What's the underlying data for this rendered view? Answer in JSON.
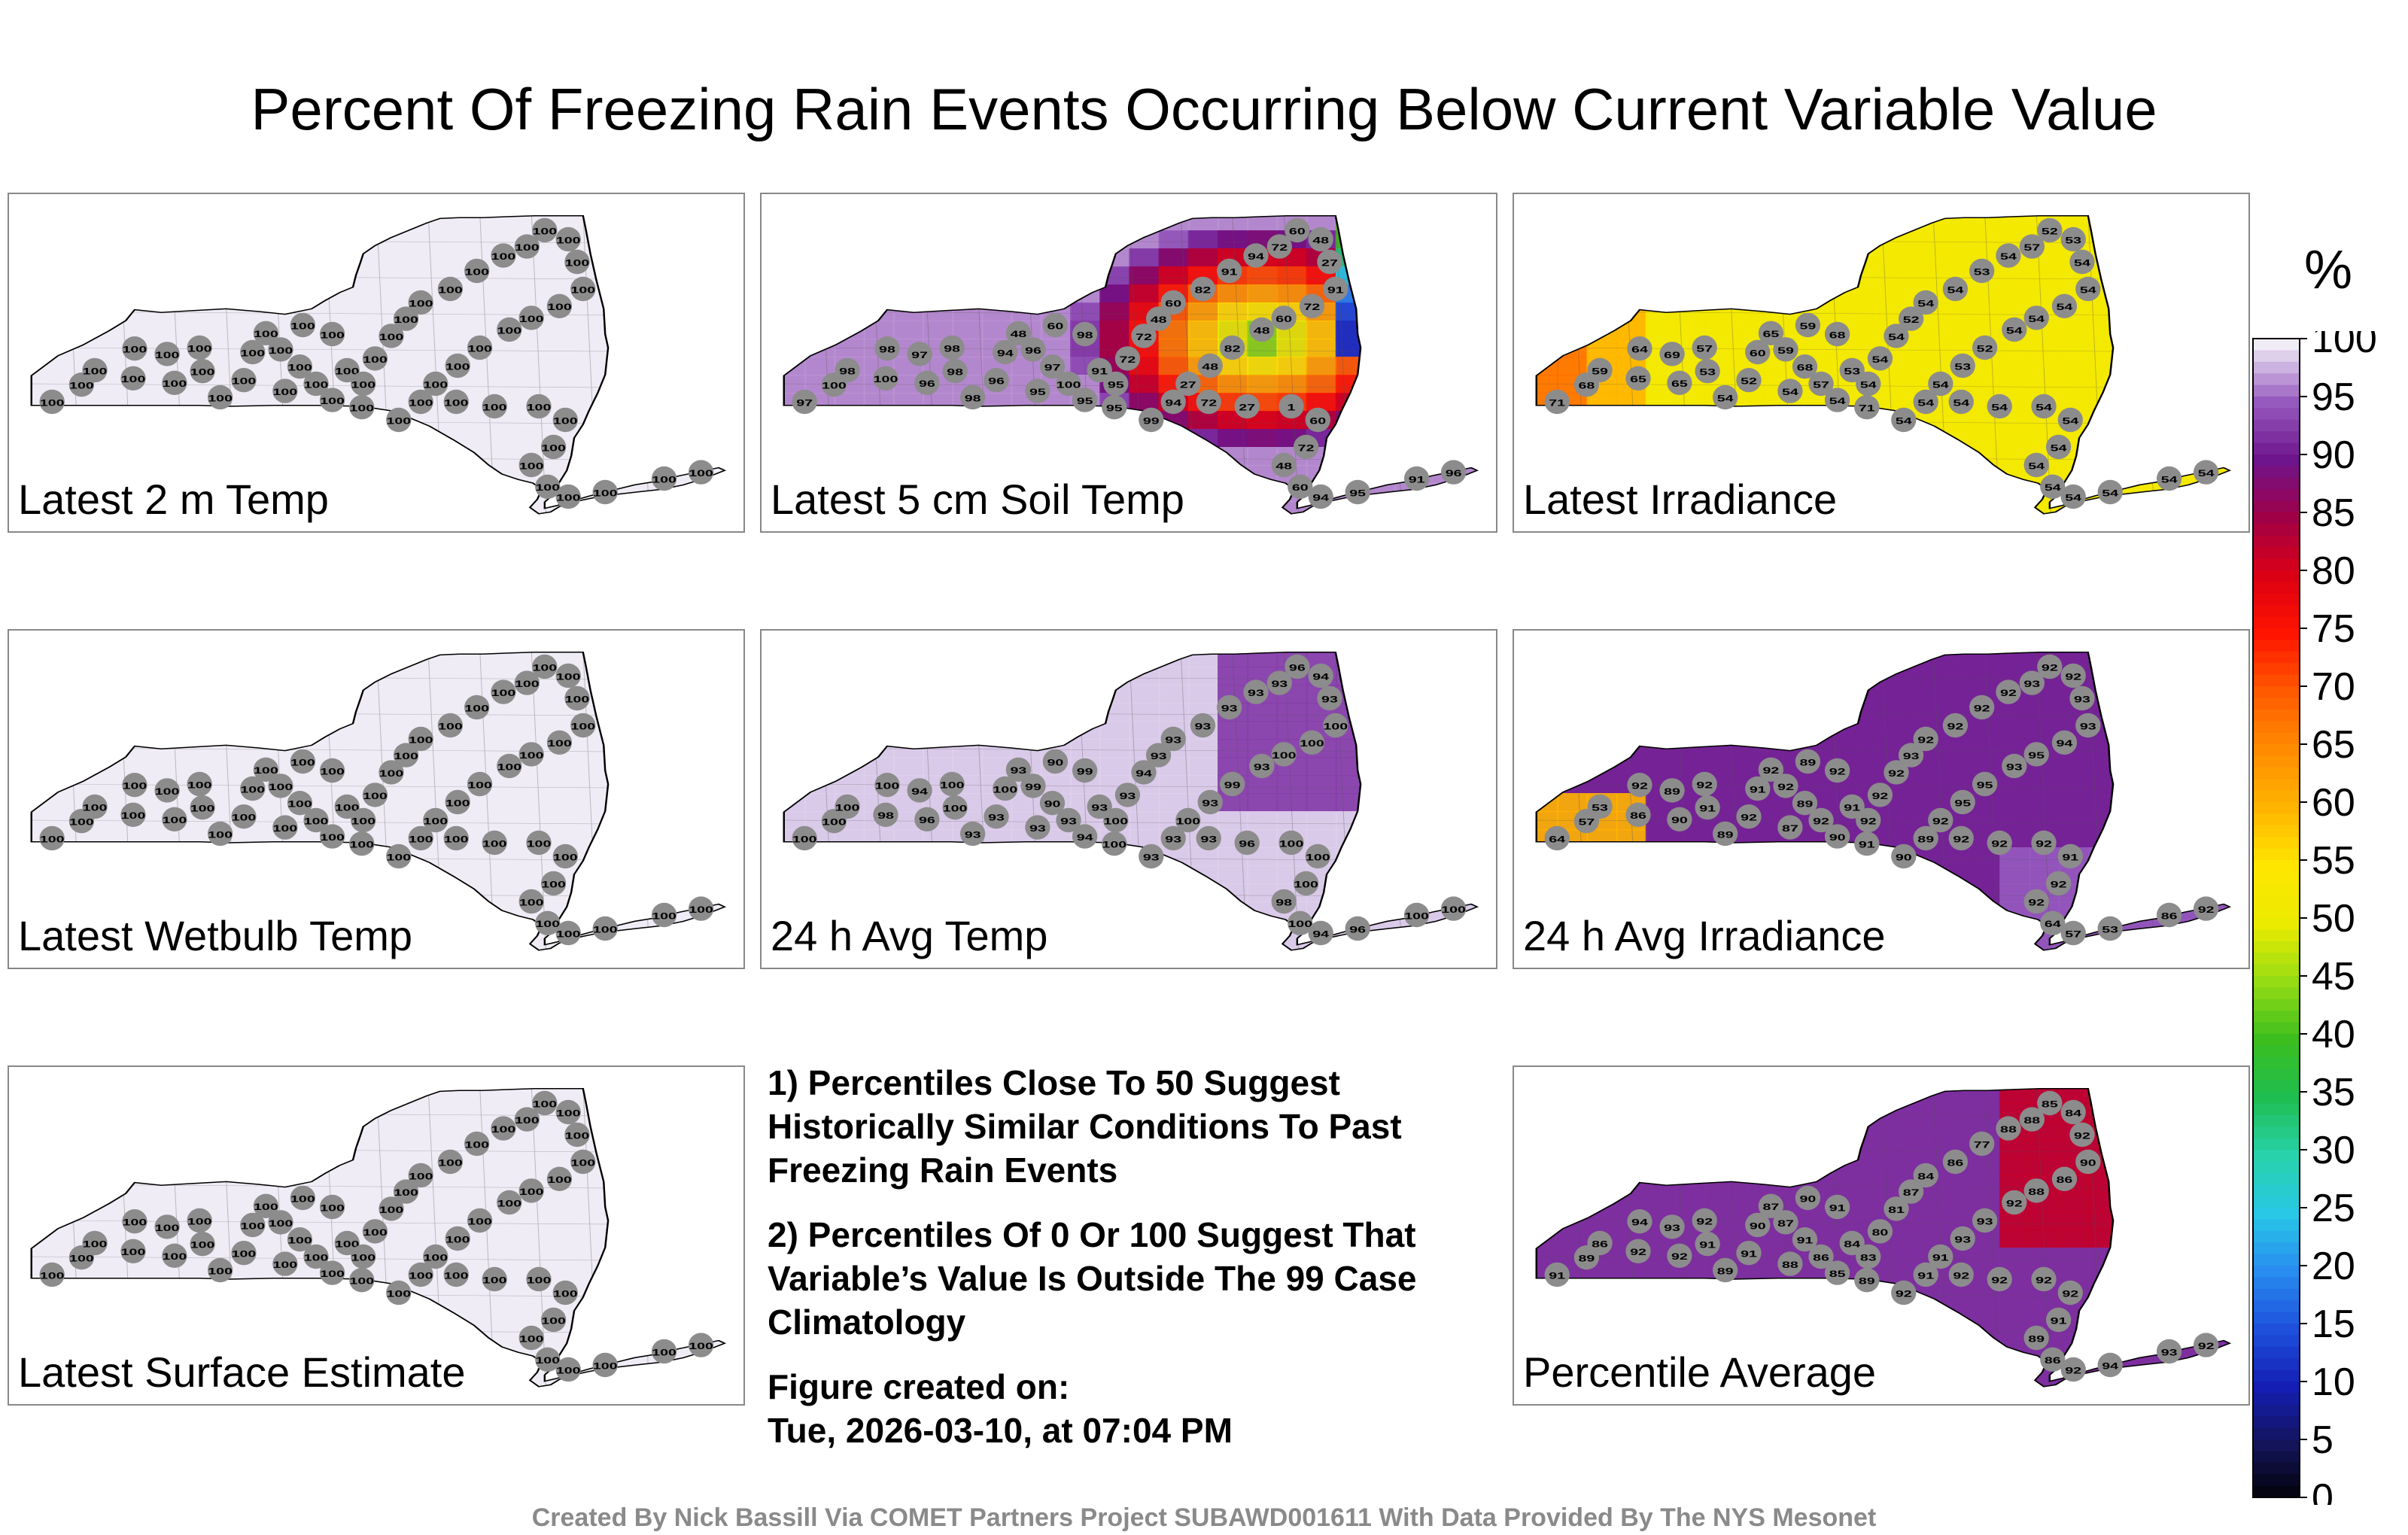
{
  "title": "Percent Of Freezing Rain Events Occurring Below Current Variable Value",
  "panels": [
    {
      "label": "Latest 2 m Temp",
      "field": "uniform100"
    },
    {
      "label": "Latest 5 cm Soil Temp",
      "field": "soil"
    },
    {
      "label": "Latest Irradiance",
      "field": "irr"
    },
    {
      "label": "Latest Wetbulb Temp",
      "field": "uniform100"
    },
    {
      "label": "24 h Avg Temp",
      "field": "avgtemp"
    },
    {
      "label": "24 h Avg Irradiance",
      "field": "avgirr"
    },
    {
      "label": "Latest Surface Estimate",
      "field": "uniform100"
    },
    {
      "label": "Percentile Average",
      "field": "avg"
    }
  ],
  "notes": {
    "n1": "1) Percentiles Close To 50 Suggest Historically Similar Conditions To Past Freezing Rain Events",
    "n2": "2) Percentiles Of 0 Or 100 Suggest That Variable’s Value Is Outside The 99 Case Climatology",
    "created_label": "Figure created on:",
    "created_value": "Tue, 2026-03-10, at 07:04 PM"
  },
  "colorbar": {
    "unit": "%",
    "ticks": [
      "100",
      "95",
      "90",
      "85",
      "80",
      "75",
      "70",
      "65",
      "60",
      "55",
      "50",
      "45",
      "40",
      "35",
      "30",
      "25",
      "20",
      "15",
      "10",
      "5",
      "0"
    ]
  },
  "credit": "Created By Nick Bassill Via COMET Partners Project SUBAWD001611 With Data Provided By The NYS Mesonet",
  "chart_data": {
    "type": "heatmap",
    "title": "Percent Of Freezing Rain Events Occurring Below Current Variable Value",
    "value_range": [
      0,
      100
    ],
    "units": "%",
    "panels": {
      "Latest 2 m Temp": {
        "station_values": [
          100,
          100,
          100,
          100,
          100,
          100,
          100,
          100,
          100,
          100,
          100,
          100,
          100,
          100,
          100,
          100,
          100,
          100,
          100,
          100,
          100,
          100,
          100,
          100,
          100,
          100,
          100,
          100,
          100,
          100,
          100,
          100,
          100,
          100,
          100,
          100,
          100,
          100,
          100,
          100
        ]
      },
      "Latest 5 cm Soil Temp": {
        "station_values": [
          97,
          100,
          98,
          100,
          98,
          97,
          96,
          98,
          98,
          98,
          96,
          94,
          96,
          97,
          95,
          100,
          95,
          91,
          95,
          72,
          72,
          48,
          60,
          82,
          91,
          94,
          72,
          60,
          48,
          27,
          91,
          72,
          60,
          48,
          82,
          48,
          27,
          72,
          27,
          1,
          60,
          72,
          48,
          60,
          94,
          95,
          91,
          96,
          94,
          99,
          95,
          98,
          60,
          48,
          82,
          96,
          95,
          96,
          100,
          98
        ]
      },
      "Latest Irradiance": {
        "station_values": [
          71,
          68,
          59,
          65,
          64,
          69,
          65,
          53,
          57,
          54,
          52,
          60,
          59,
          68,
          54,
          57,
          54,
          53,
          54,
          54,
          54,
          52,
          54,
          54,
          53,
          54,
          57,
          52,
          53,
          54,
          54,
          54,
          54,
          54,
          52,
          53,
          54,
          54,
          54,
          54,
          54,
          54,
          54,
          54,
          54,
          54,
          54,
          54,
          54,
          54
        ]
      },
      "Latest Wetbulb Temp": {
        "station_values": [
          100,
          100,
          100,
          100,
          100,
          100,
          100,
          100,
          100,
          100,
          100,
          100,
          100,
          100,
          100,
          100,
          100,
          100,
          100,
          100,
          100,
          100,
          100,
          100,
          100,
          100,
          100,
          100,
          100,
          100,
          100,
          100,
          100,
          100,
          100,
          100,
          100,
          100,
          100,
          100
        ]
      },
      "24 h Avg Temp": {
        "station_values": [
          100,
          100,
          100,
          98,
          100,
          94,
          96,
          100,
          100,
          93,
          93,
          100,
          99,
          90,
          93,
          93,
          94,
          93,
          100,
          93,
          94,
          93,
          93,
          93,
          93,
          93,
          93,
          96,
          94,
          93,
          100,
          100,
          100,
          93,
          99,
          93,
          100,
          93,
          96
        ]
      },
      "24 h Avg Irradiance": {
        "station_values": [
          64,
          57,
          53,
          86,
          92,
          89,
          90,
          91,
          92,
          89,
          92,
          91,
          92,
          89,
          87,
          92,
          90,
          91,
          92,
          92,
          92,
          93,
          92,
          92,
          92,
          92,
          93,
          92,
          92,
          93,
          93,
          94,
          95,
          93,
          95,
          95,
          92,
          92,
          92,
          92,
          91,
          92,
          92
        ]
      },
      "Latest Surface Estimate": {
        "station_values": [
          100,
          100,
          100,
          100,
          100,
          100,
          100,
          100,
          100,
          100,
          100,
          100,
          100,
          100,
          100,
          100,
          100,
          100,
          100,
          100,
          100,
          100,
          100,
          100,
          100,
          100,
          100,
          100,
          100,
          100,
          100,
          100,
          100,
          100,
          100,
          100,
          100,
          100,
          100,
          100
        ]
      },
      "Percentile Average": {
        "station_values": [
          91,
          89,
          86,
          92,
          94,
          93,
          92,
          91,
          92,
          89,
          91,
          90,
          87,
          91,
          88,
          86,
          85,
          84,
          83,
          80,
          81,
          87,
          84,
          86,
          77,
          88,
          88,
          85,
          84,
          92,
          90,
          86,
          88,
          92,
          93,
          93,
          91,
          92,
          92,
          92,
          92
        ]
      }
    }
  }
}
